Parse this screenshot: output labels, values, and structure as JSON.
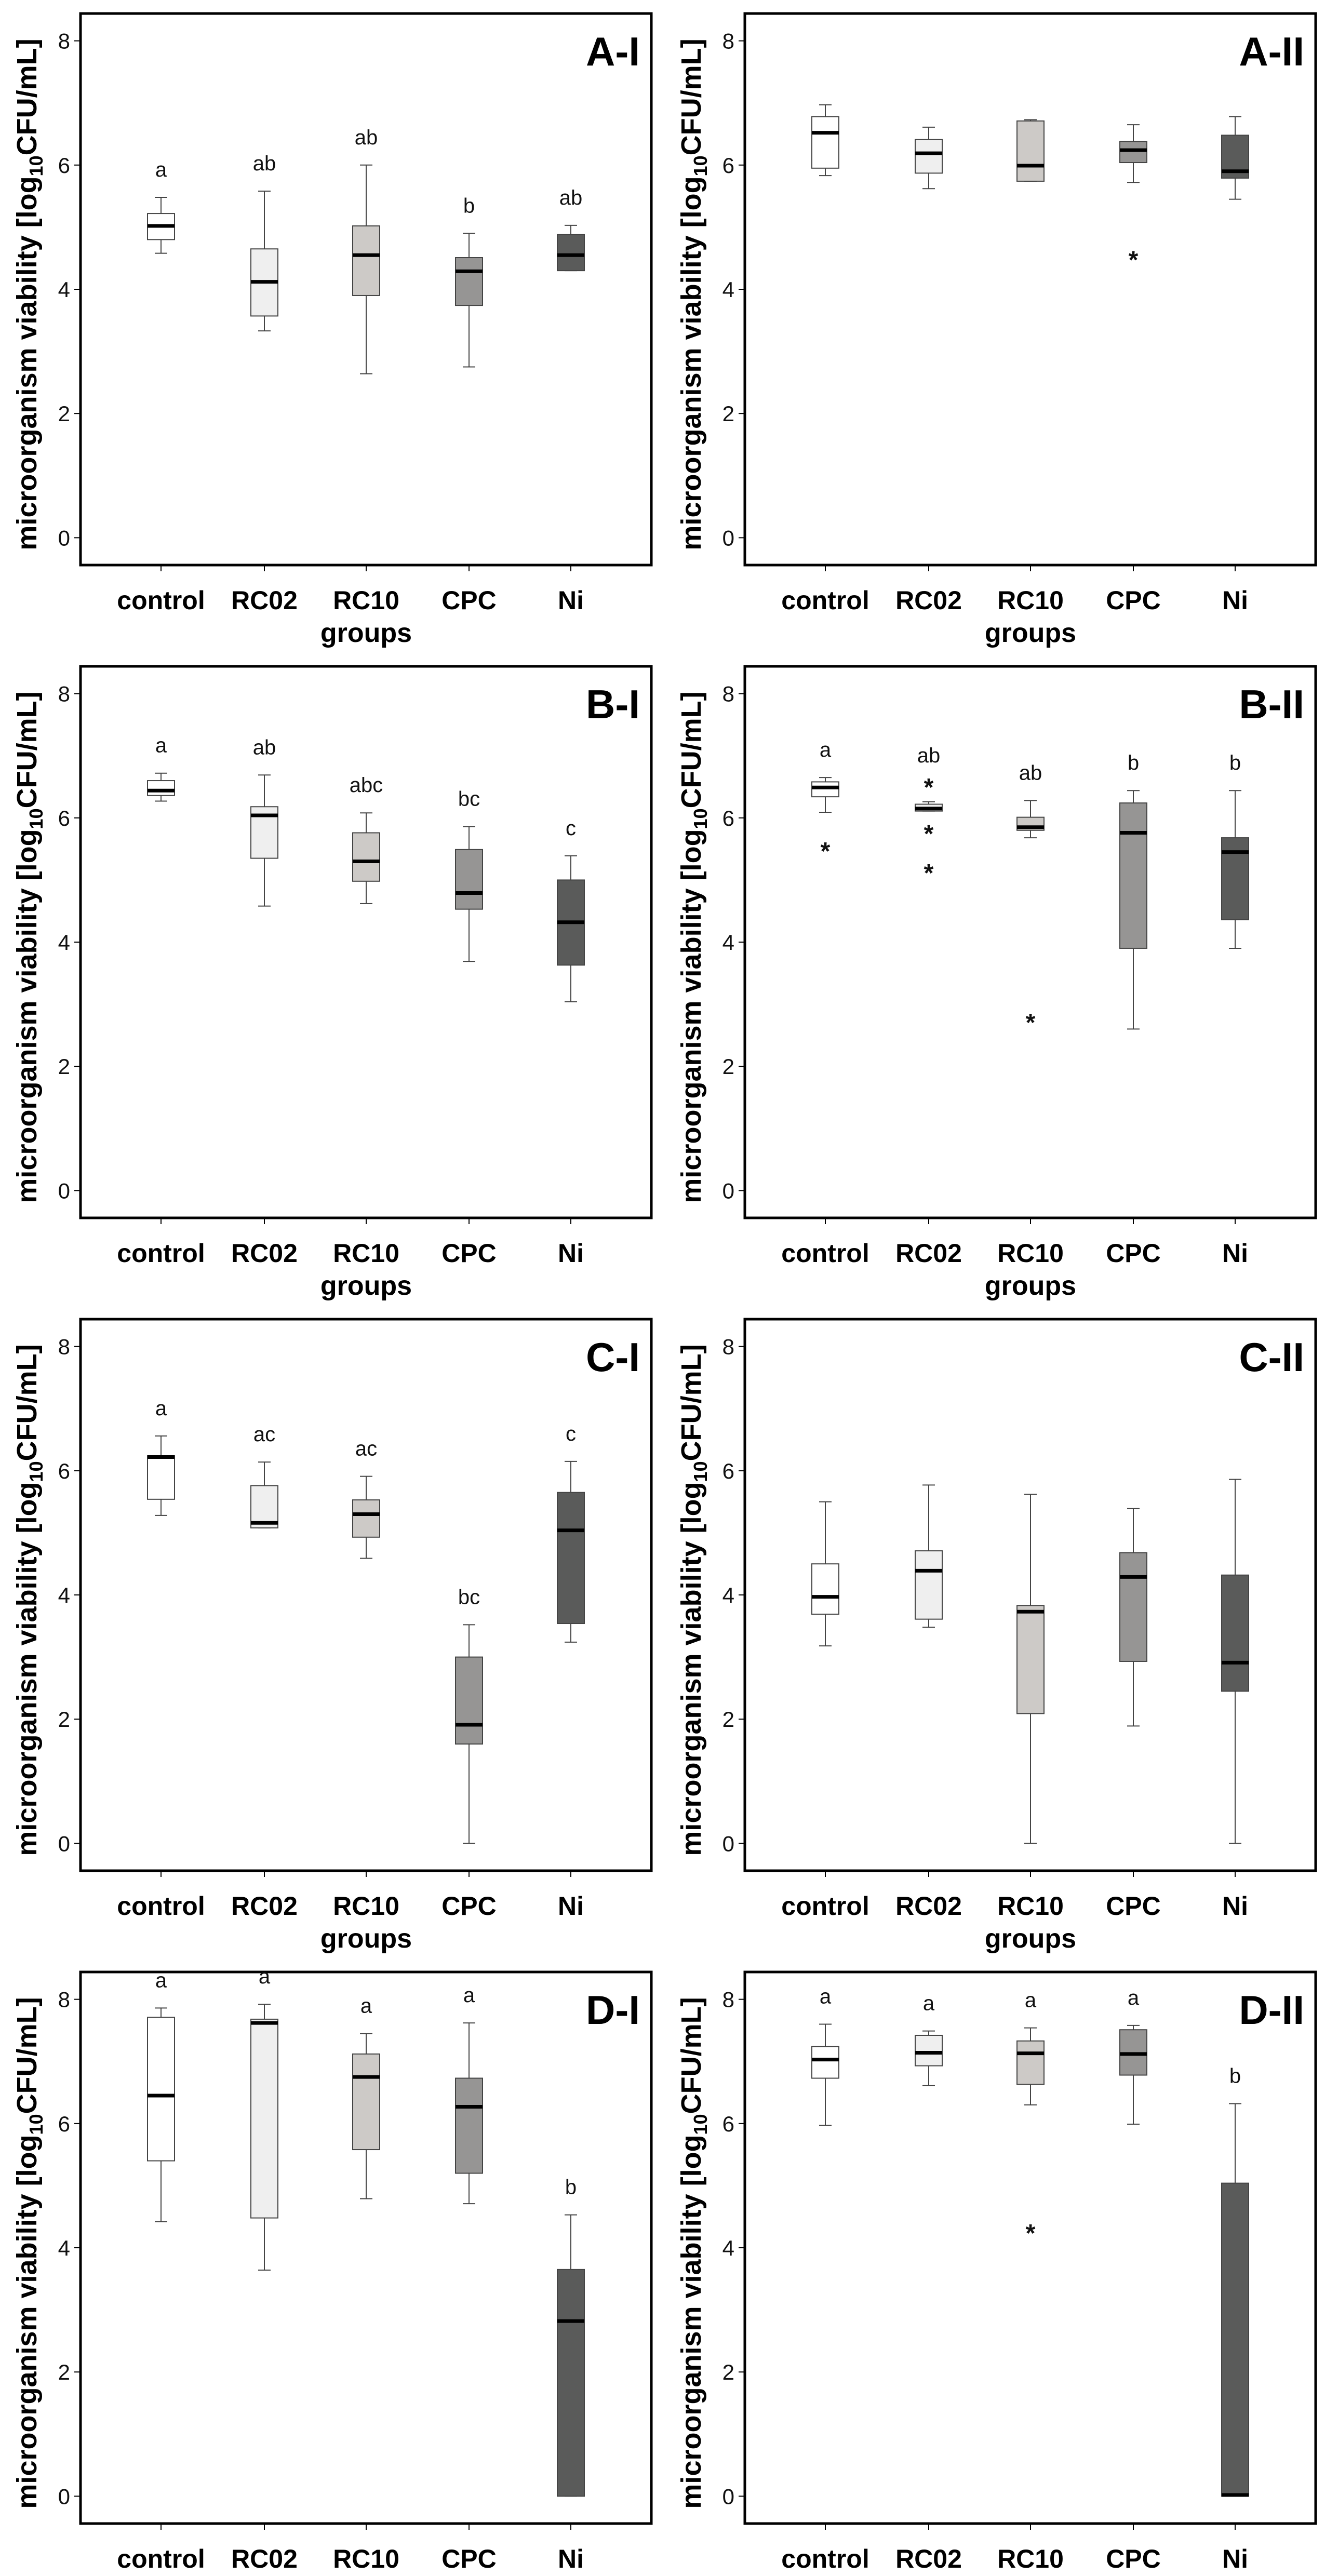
{
  "chart_data": {
    "type": "box",
    "layout": "4 rows x 2 columns",
    "categories": [
      "control",
      "RC02",
      "RC10",
      "CPC",
      "Ni"
    ],
    "xlabel": "groups",
    "ylabel": {
      "prefix": "microorganism viability [log",
      "sub": "10",
      "suffix": "CFU/mL]"
    },
    "ylim": [
      -0.44,
      8.44
    ],
    "yticks": [
      0,
      2,
      4,
      6,
      8
    ],
    "fill_colors": [
      "#ffffff",
      "#efefef",
      "#cdcac7",
      "#969594",
      "#5a5b5a"
    ],
    "panels": [
      {
        "label": "A-I",
        "letters": [
          "a",
          "ab",
          "ab",
          "b",
          "ab"
        ],
        "boxes": [
          [
            4.58,
            4.8,
            5.02,
            5.22,
            5.48
          ],
          [
            3.33,
            3.57,
            4.12,
            4.65,
            5.58
          ],
          [
            2.64,
            3.9,
            4.55,
            5.02,
            6.0
          ],
          [
            2.75,
            3.74,
            4.29,
            4.51,
            4.9
          ],
          [
            4.3,
            4.3,
            4.55,
            4.88,
            5.03
          ]
        ],
        "outliers": [
          [],
          [],
          [],
          [],
          []
        ]
      },
      {
        "label": "A-II",
        "letters": [
          "",
          "",
          "",
          "",
          ""
        ],
        "boxes": [
          [
            5.83,
            5.95,
            6.52,
            6.78,
            6.97
          ],
          [
            5.62,
            5.87,
            6.19,
            6.41,
            6.61
          ],
          [
            5.74,
            5.74,
            5.99,
            6.71,
            6.73
          ],
          [
            5.72,
            6.04,
            6.24,
            6.38,
            6.65
          ],
          [
            5.45,
            5.79,
            5.9,
            6.48,
            6.78
          ]
        ],
        "outliers": [
          [],
          [],
          [],
          [
            4.54
          ],
          []
        ]
      },
      {
        "label": "B-I",
        "letters": [
          "a",
          "ab",
          "abc",
          "bc",
          "c"
        ],
        "boxes": [
          [
            6.27,
            6.36,
            6.44,
            6.6,
            6.72
          ],
          [
            4.58,
            5.35,
            6.04,
            6.18,
            6.69
          ],
          [
            4.62,
            4.98,
            5.3,
            5.76,
            6.08
          ],
          [
            3.69,
            4.53,
            4.79,
            5.49,
            5.86
          ],
          [
            3.04,
            3.63,
            4.32,
            5.0,
            5.39
          ]
        ],
        "outliers": [
          [],
          [],
          [],
          [],
          []
        ]
      },
      {
        "label": "B-II",
        "letters": [
          "a",
          "ab",
          "ab",
          "b",
          "b"
        ],
        "boxes": [
          [
            6.09,
            6.34,
            6.49,
            6.58,
            6.65
          ],
          [
            6.11,
            6.11,
            6.15,
            6.22,
            6.26
          ],
          [
            5.68,
            5.8,
            5.85,
            6.01,
            6.28
          ],
          [
            2.6,
            3.9,
            5.76,
            6.24,
            6.44
          ],
          [
            3.9,
            4.36,
            5.45,
            5.68,
            6.44
          ]
        ],
        "outliers": [
          [
            5.53
          ],
          [
            6.56,
            5.81,
            5.18
          ],
          [
            2.77
          ],
          [],
          []
        ]
      },
      {
        "label": "C-I",
        "letters": [
          "a",
          "ac",
          "ac",
          "bc",
          "c"
        ],
        "boxes": [
          [
            5.28,
            5.54,
            6.22,
            6.24,
            6.56
          ],
          [
            5.08,
            5.08,
            5.16,
            5.76,
            6.14
          ],
          [
            4.59,
            4.93,
            5.3,
            5.53,
            5.91
          ],
          [
            0.0,
            1.6,
            1.91,
            3.0,
            3.52
          ],
          [
            3.24,
            3.54,
            5.04,
            5.65,
            6.15
          ]
        ],
        "outliers": [
          [],
          [],
          [],
          [],
          []
        ]
      },
      {
        "label": "C-II",
        "letters": [
          "",
          "",
          "",
          "",
          ""
        ],
        "boxes": [
          [
            3.18,
            3.69,
            3.97,
            4.5,
            5.5
          ],
          [
            3.48,
            3.61,
            4.39,
            4.71,
            5.77
          ],
          [
            0.0,
            2.09,
            3.73,
            3.83,
            5.62
          ],
          [
            1.89,
            2.93,
            4.29,
            4.68,
            5.39
          ],
          [
            0.0,
            2.45,
            2.91,
            4.32,
            5.86
          ]
        ],
        "outliers": [
          [],
          [],
          [],
          [],
          []
        ]
      },
      {
        "label": "D-I",
        "letters": [
          "a",
          "a",
          "a",
          "a",
          "b"
        ],
        "boxes": [
          [
            4.42,
            5.4,
            6.45,
            7.71,
            7.86
          ],
          [
            3.64,
            4.48,
            7.62,
            7.68,
            7.92
          ],
          [
            4.79,
            5.58,
            6.75,
            7.12,
            7.45
          ],
          [
            4.71,
            5.2,
            6.27,
            6.73,
            7.62
          ],
          [
            0.0,
            0.0,
            2.82,
            3.65,
            4.53
          ]
        ],
        "outliers": [
          [],
          [],
          [],
          [],
          []
        ]
      },
      {
        "label": "D-II",
        "letters": [
          "a",
          "a",
          "a",
          "a",
          "b"
        ],
        "boxes": [
          [
            5.97,
            6.73,
            7.03,
            7.24,
            7.6
          ],
          [
            6.61,
            6.93,
            7.14,
            7.42,
            7.49
          ],
          [
            6.3,
            6.63,
            7.13,
            7.33,
            7.54
          ],
          [
            5.99,
            6.78,
            7.12,
            7.51,
            7.58
          ],
          [
            0.0,
            0.0,
            0.02,
            5.04,
            6.32
          ]
        ],
        "outliers": [
          [],
          [],
          [
            4.3
          ],
          [],
          []
        ]
      }
    ],
    "outlier_marker": "*"
  }
}
